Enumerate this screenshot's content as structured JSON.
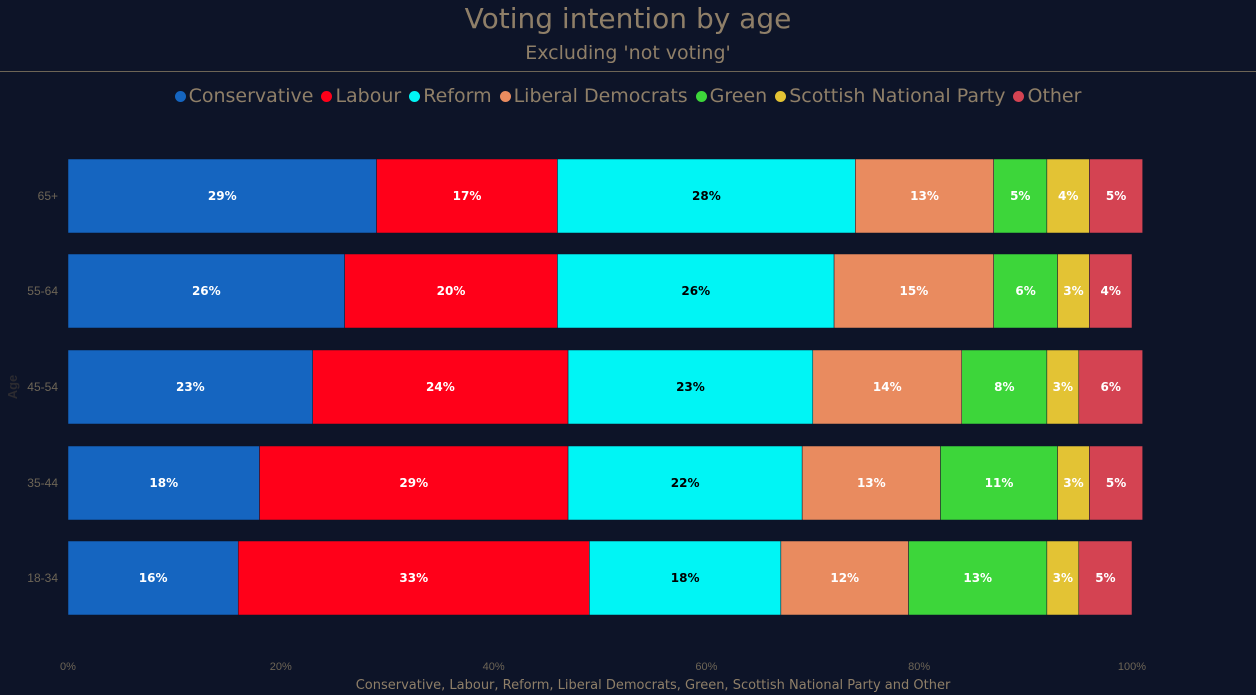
{
  "header": {
    "title": "Voting intention by age",
    "subtitle": "Excluding 'not voting'"
  },
  "chart_data": {
    "type": "bar",
    "orientation": "horizontal",
    "stacked": true,
    "title": "Voting intention by age",
    "subtitle": "Excluding 'not voting'",
    "ylabel": "Age",
    "xlabel": "Conservative, Labour, Reform, Liberal Democrats, Green, Scottish National Party and Other",
    "xlim": [
      0,
      100
    ],
    "x_ticks": [
      "0%",
      "20%",
      "40%",
      "60%",
      "80%",
      "100%"
    ],
    "legend_position": "top-center",
    "grid": false,
    "categories": [
      "65+",
      "55-64",
      "45-54",
      "35-44",
      "18-34"
    ],
    "series": [
      {
        "name": "Conservative",
        "color": "#1565c0",
        "label_color": "#ffffff",
        "values": [
          29,
          26,
          23,
          18,
          16
        ]
      },
      {
        "name": "Labour",
        "color": "#ff0019",
        "label_color": "#ffffff",
        "values": [
          17,
          20,
          24,
          29,
          33
        ]
      },
      {
        "name": "Reform",
        "color": "#00f5f5",
        "label_color": "#000000",
        "values": [
          28,
          26,
          23,
          22,
          18
        ]
      },
      {
        "name": "Liberal Democrats",
        "color": "#e98b5f",
        "label_color": "#ffffff",
        "values": [
          13,
          15,
          14,
          13,
          12
        ]
      },
      {
        "name": "Green",
        "color": "#3dd63a",
        "label_color": "#ffffff",
        "values": [
          5,
          6,
          8,
          11,
          13
        ]
      },
      {
        "name": "Scottish National Party",
        "color": "#e3c334",
        "label_color": "#ffffff",
        "values": [
          4,
          3,
          3,
          3,
          3
        ]
      },
      {
        "name": "Other",
        "color": "#d44352",
        "label_color": "#ffffff",
        "values": [
          5,
          4,
          6,
          5,
          5
        ]
      }
    ]
  }
}
